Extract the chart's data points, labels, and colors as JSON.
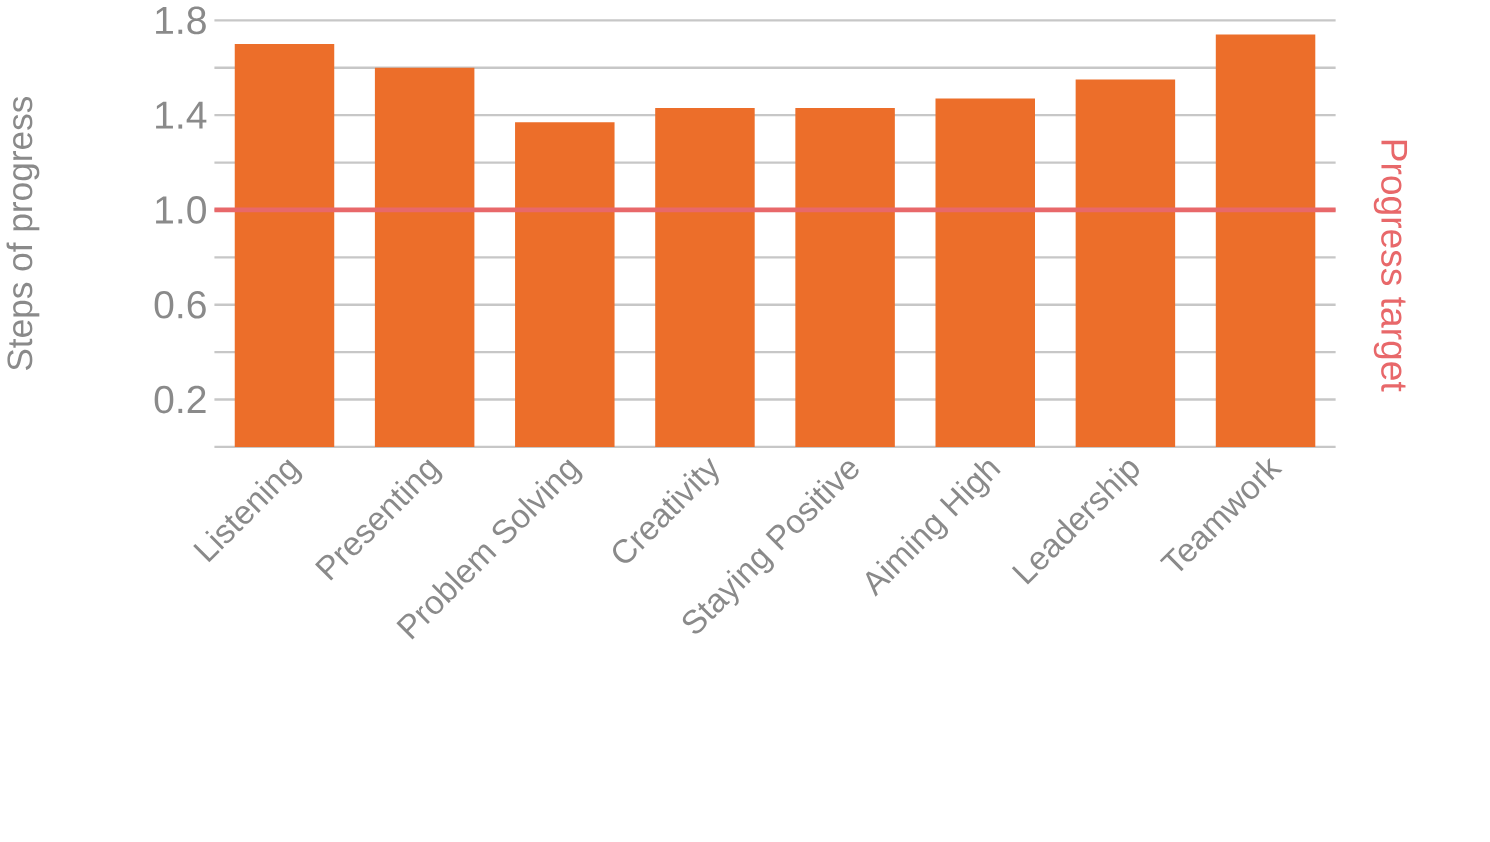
{
  "chart_data": {
    "type": "bar",
    "ylabel": "Steps of progress",
    "categories": [
      "Listening",
      "Presenting",
      "Problem Solving",
      "Creativity",
      "Staying Positive",
      "Aiming High",
      "Leadership",
      "Teamwork"
    ],
    "values": [
      1.7,
      1.6,
      1.37,
      1.43,
      1.43,
      1.47,
      1.55,
      1.74
    ],
    "color": "#ec6e2a",
    "ylim": [
      0,
      1.8
    ],
    "yticks": [
      {
        "value": 0,
        "label": null
      },
      0.2,
      {
        "value": 0.4,
        "label": null
      },
      0.6,
      {
        "value": 0.8,
        "label": null
      },
      {
        "value": 1,
        "label": "1.0"
      },
      {
        "value": 1.2,
        "label": null
      },
      1.4,
      {
        "value": 1.6,
        "label": null
      },
      1.8
    ],
    "grid": "y",
    "ref_lines": [
      {
        "axis": "y",
        "value": 1.0,
        "label": "Progress target",
        "color": "#e8686a"
      }
    ]
  }
}
